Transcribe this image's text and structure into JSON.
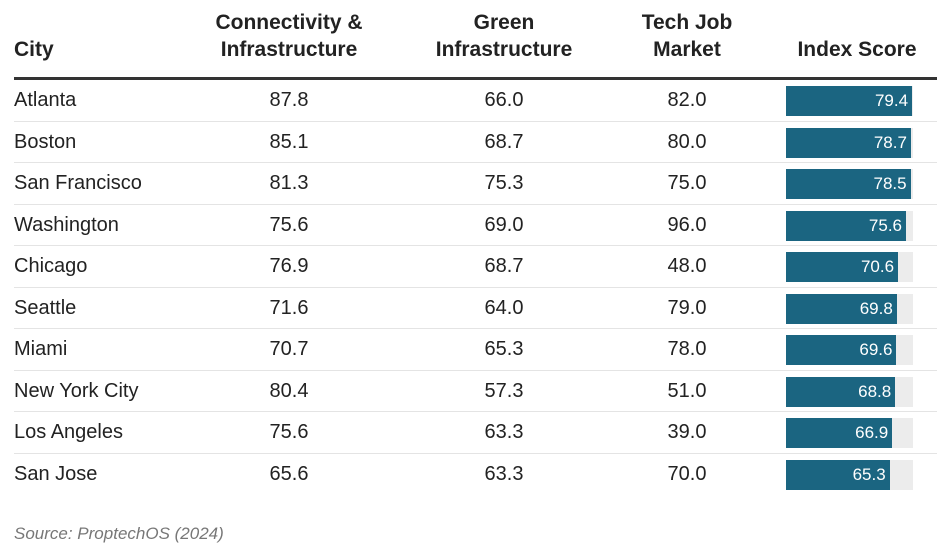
{
  "chart_data": {
    "type": "table",
    "columns": [
      "City",
      "Connectivity & Infrastructure",
      "Green Infrastructure",
      "Tech Job Market",
      "Index Score"
    ],
    "rows": [
      {
        "city": "Atlanta",
        "connectivity": "87.8",
        "green": "66.0",
        "tech_jobs": "82.0",
        "index_score": 79.4
      },
      {
        "city": "Boston",
        "connectivity": "85.1",
        "green": "68.7",
        "tech_jobs": "80.0",
        "index_score": 78.7
      },
      {
        "city": "San Francisco",
        "connectivity": "81.3",
        "green": "75.3",
        "tech_jobs": "75.0",
        "index_score": 78.5
      },
      {
        "city": "Washington",
        "connectivity": "75.6",
        "green": "69.0",
        "tech_jobs": "96.0",
        "index_score": 75.6
      },
      {
        "city": "Chicago",
        "connectivity": "76.9",
        "green": "68.7",
        "tech_jobs": "48.0",
        "index_score": 70.6
      },
      {
        "city": "Seattle",
        "connectivity": "71.6",
        "green": "64.0",
        "tech_jobs": "79.0",
        "index_score": 69.8
      },
      {
        "city": "Miami",
        "connectivity": "70.7",
        "green": "65.3",
        "tech_jobs": "78.0",
        "index_score": 69.6
      },
      {
        "city": "New York City",
        "connectivity": "80.4",
        "green": "57.3",
        "tech_jobs": "51.0",
        "index_score": 68.8
      },
      {
        "city": "Los Angeles",
        "connectivity": "75.6",
        "green": "63.3",
        "tech_jobs": "39.0",
        "index_score": 66.9
      },
      {
        "city": "San Jose",
        "connectivity": "65.6",
        "green": "63.3",
        "tech_jobs": "70.0",
        "index_score": 65.3
      }
    ],
    "index_bar_max": 80,
    "bar_color": "#1b6581",
    "track_color": "#ececec",
    "source": "Source: ProptechOS (2024)"
  },
  "header": {
    "city": "City",
    "connectivity_line1": "Connectivity &",
    "connectivity_line2": "Infrastructure",
    "green_line1": "Green",
    "green_line2": "Infrastructure",
    "tech_line1": "Tech Job",
    "tech_line2": "Market",
    "index": "Index Score"
  }
}
